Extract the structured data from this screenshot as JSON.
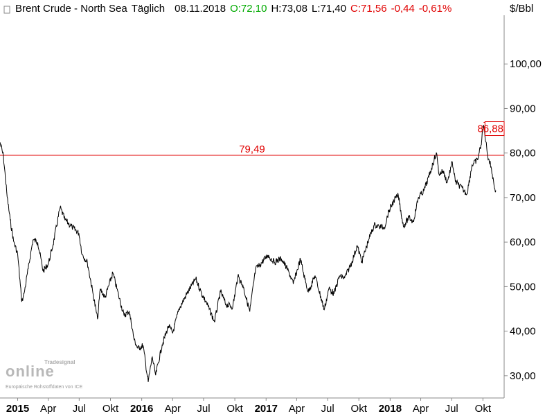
{
  "header": {
    "instrument": "Brent Crude - North Sea",
    "interval": "Täglich",
    "date": "08.11.2018",
    "open": "O:72,10",
    "high": "H:73,08",
    "low": "L:71,40",
    "close": "C:71,56",
    "change": "-0,44",
    "change_pct": "-0,61%",
    "unit": "$/Bbl"
  },
  "watermark": {
    "brand_top": "Tradesignal",
    "brand_main": "online",
    "source": "Europäische Rohstoffdaten von ICE"
  },
  "colors": {
    "line": "#000000",
    "reference_line": "#e00000",
    "open_color": "#00aa00",
    "negative_color": "#e00000",
    "axis": "#888888"
  },
  "chart_data": {
    "type": "line",
    "title": "Brent Crude - North Sea Täglich",
    "ylabel": "$/Bbl",
    "xlabel": "",
    "ylim": [
      25,
      110
    ],
    "y_ticks": [
      30,
      40,
      50,
      60,
      70,
      80,
      90,
      100
    ],
    "y_tick_labels": [
      "30,00",
      "40,00",
      "50,00",
      "60,00",
      "70,00",
      "80,00",
      "90,00",
      "100,00"
    ],
    "x_tick_labels": [
      "2015",
      "Apr",
      "Jul",
      "Okt",
      "2016",
      "Apr",
      "Jul",
      "Okt",
      "2017",
      "Apr",
      "Jul",
      "Okt",
      "2018",
      "Apr",
      "Jul",
      "Okt"
    ],
    "x_tick_bold": [
      true,
      false,
      false,
      false,
      true,
      false,
      false,
      false,
      true,
      false,
      false,
      false,
      true,
      false,
      false,
      false
    ],
    "x_tick_dates": [
      "2015-01-01",
      "2015-04-01",
      "2015-07-01",
      "2015-10-01",
      "2016-01-01",
      "2016-04-01",
      "2016-07-01",
      "2016-10-01",
      "2017-01-01",
      "2017-04-01",
      "2017-07-01",
      "2017-10-01",
      "2018-01-01",
      "2018-04-01",
      "2018-07-01",
      "2018-10-01"
    ],
    "x_range": [
      "2014-11-10",
      "2018-11-08"
    ],
    "grid": false,
    "series": [
      {
        "x": [
          "2014-11-10",
          "2014-11-20",
          "2014-12-01",
          "2014-12-10",
          "2014-12-20",
          "2015-01-01",
          "2015-01-13",
          "2015-01-20",
          "2015-02-01",
          "2015-02-15",
          "2015-03-01",
          "2015-03-17",
          "2015-04-01",
          "2015-04-15",
          "2015-05-06",
          "2015-05-20",
          "2015-06-10",
          "2015-06-30",
          "2015-07-10",
          "2015-07-25",
          "2015-08-10",
          "2015-08-24",
          "2015-09-01",
          "2015-09-15",
          "2015-10-08",
          "2015-10-25",
          "2015-11-10",
          "2015-11-25",
          "2015-12-10",
          "2015-12-21",
          "2016-01-05",
          "2016-01-20",
          "2016-02-01",
          "2016-02-11",
          "2016-03-01",
          "2016-03-20",
          "2016-04-01",
          "2016-04-20",
          "2016-05-10",
          "2016-06-08",
          "2016-06-25",
          "2016-07-10",
          "2016-08-02",
          "2016-08-20",
          "2016-09-05",
          "2016-09-25",
          "2016-10-10",
          "2016-10-25",
          "2016-11-14",
          "2016-12-01",
          "2016-12-15",
          "2017-01-06",
          "2017-01-25",
          "2017-02-15",
          "2017-03-10",
          "2017-03-22",
          "2017-04-12",
          "2017-04-25",
          "2017-05-05",
          "2017-05-25",
          "2017-06-21",
          "2017-07-05",
          "2017-07-20",
          "2017-08-05",
          "2017-08-20",
          "2017-09-10",
          "2017-09-26",
          "2017-10-10",
          "2017-10-30",
          "2017-11-15",
          "2017-11-30",
          "2017-12-15",
          "2017-12-28",
          "2018-01-12",
          "2018-01-25",
          "2018-02-09",
          "2018-02-25",
          "2018-03-10",
          "2018-03-25",
          "2018-04-10",
          "2018-04-25",
          "2018-05-17",
          "2018-05-25",
          "2018-06-05",
          "2018-06-18",
          "2018-07-03",
          "2018-07-12",
          "2018-07-20",
          "2018-08-15",
          "2018-08-30",
          "2018-09-15",
          "2018-09-25",
          "2018-10-03",
          "2018-10-15",
          "2018-10-25",
          "2018-11-05",
          "2018-11-08"
        ],
        "values": [
          82.4,
          79.3,
          70.2,
          65.0,
          60.2,
          57.3,
          46.6,
          48.5,
          54.0,
          60.5,
          60.0,
          53.5,
          55.1,
          59.4,
          67.8,
          65.0,
          63.4,
          62.0,
          57.2,
          55.5,
          48.7,
          42.7,
          49.5,
          47.5,
          53.1,
          48.0,
          43.5,
          44.5,
          38.0,
          36.1,
          36.8,
          28.6,
          34.2,
          30.1,
          36.9,
          41.2,
          39.6,
          45.0,
          48.0,
          51.8,
          48.5,
          46.3,
          42.1,
          48.9,
          46.0,
          45.5,
          52.3,
          50.2,
          44.4,
          53.9,
          55.0,
          57.1,
          55.5,
          56.3,
          53.1,
          50.6,
          56.2,
          51.7,
          48.8,
          52.5,
          44.8,
          49.6,
          48.4,
          52.4,
          51.9,
          55.4,
          59.2,
          55.6,
          60.6,
          63.8,
          63.5,
          63.3,
          66.9,
          69.3,
          70.5,
          63.5,
          65.5,
          64.6,
          70.0,
          71.5,
          74.7,
          80.1,
          75.2,
          76.0,
          73.4,
          78.0,
          73.5,
          73.0,
          70.8,
          77.3,
          78.5,
          81.7,
          86.3,
          79.5,
          76.9,
          72.0,
          71.6
        ]
      }
    ],
    "reference_lines": [
      {
        "value": 79.49,
        "label": "79,49"
      }
    ],
    "annotations": [
      {
        "value": 86.88,
        "label": "86,88",
        "date": "2018-10-03"
      }
    ]
  }
}
